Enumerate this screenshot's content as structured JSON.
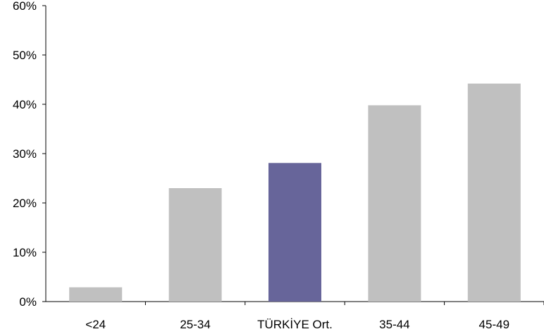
{
  "chart_data": {
    "type": "bar",
    "title": "",
    "xlabel": "",
    "ylabel": "",
    "categories": [
      "<24",
      "25-34",
      "TÜRKİYE Ort.",
      "35-44",
      "45-49"
    ],
    "values": [
      2.9,
      23.0,
      28.1,
      39.8,
      44.2
    ],
    "highlight_index": 2,
    "ylim": [
      0,
      60
    ],
    "yticks": [
      0,
      10,
      20,
      30,
      40,
      50,
      60
    ],
    "ytick_labels": [
      "0%",
      "10%",
      "20%",
      "30%",
      "40%",
      "50%",
      "60%"
    ],
    "grid": false,
    "legend": "none",
    "colors": {
      "bar": "#c0c0c0",
      "highlight": "#67659a",
      "axis": "#000000"
    }
  }
}
